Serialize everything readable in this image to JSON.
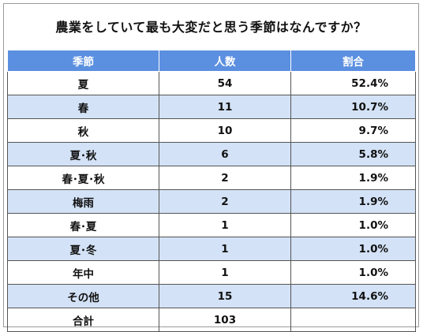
{
  "title": "農業をしていて最も大変だと思う季節はなんですか？",
  "headers": [
    "季節",
    "人数",
    "割合"
  ],
  "rows": [
    {
      "season": "夏",
      "count": "54",
      "pct": "52.4%"
    },
    {
      "season": "春",
      "count": "11",
      "pct": "10.7%"
    },
    {
      "season": "秋",
      "count": "10",
      "pct": "9.7%"
    },
    {
      "season": "夏･秋",
      "count": "6",
      "pct": "5.8%"
    },
    {
      "season": "春･夏･秋",
      "count": "2",
      "pct": "1.9%"
    },
    {
      "season": "梅雨",
      "count": "2",
      "pct": "1.9%"
    },
    {
      "season": "春･夏",
      "count": "1",
      "pct": "1.0%"
    },
    {
      "season": "夏･冬",
      "count": "1",
      "pct": "1.0%"
    },
    {
      "season": "年中",
      "count": "1",
      "pct": "1.0%"
    },
    {
      "season": "その他",
      "count": "15",
      "pct": "14.6%"
    }
  ],
  "total": {
    "label": "合計",
    "count": "103",
    "pct": ""
  },
  "colors": {
    "header_bg": "#5b8fe0",
    "stripe_bg": "#d3e2f6"
  }
}
